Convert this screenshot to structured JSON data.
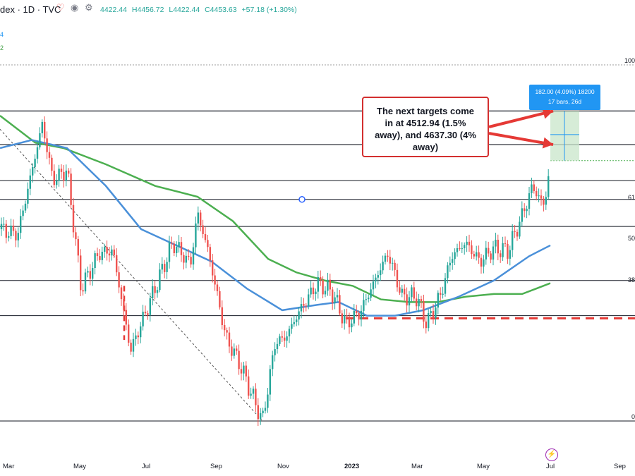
{
  "header": {
    "symbol": "dex · 1D · TVC",
    "open": "4422.44",
    "high": "H4456.72",
    "low": "L4422.44",
    "close": "C4453.63",
    "change": "+57.18 (+1.30%)",
    "left_digits": [
      "4",
      "2"
    ]
  },
  "annotation": {
    "text_lines": [
      "The next targets come",
      "in at 4512.94 (1.5%",
      "away), and 4637.30 (4%",
      "away)"
    ]
  },
  "measure_box": {
    "line1": "182.00 (4.09%) 18200",
    "line2": "17 bars, 26d"
  },
  "fib_labels": [
    "100",
    "61",
    "50",
    "38",
    "0"
  ],
  "chart_data": {
    "type": "candlestick",
    "x_labels": [
      "Mar",
      "May",
      "Jul",
      "Sep",
      "Nov",
      "2023",
      "Mar",
      "May",
      "Jul",
      "Sep"
    ],
    "price_path": [
      [
        0,
        4200
      ],
      [
        25,
        4180
      ],
      [
        60,
        4590
      ],
      [
        75,
        4380
      ],
      [
        95,
        4420
      ],
      [
        115,
        3980
      ],
      [
        140,
        4110
      ],
      [
        160,
        4120
      ],
      [
        185,
        3750
      ],
      [
        215,
        3950
      ],
      [
        245,
        4150
      ],
      [
        270,
        4070
      ],
      [
        280,
        4260
      ],
      [
        295,
        4120
      ],
      [
        320,
        3800
      ],
      [
        340,
        3700
      ],
      [
        355,
        3600
      ],
      [
        372,
        3490
      ],
      [
        390,
        3780
      ],
      [
        405,
        3800
      ],
      [
        425,
        3900
      ],
      [
        450,
        4000
      ],
      [
        470,
        3970
      ],
      [
        490,
        3850
      ],
      [
        510,
        3890
      ],
      [
        540,
        4060
      ],
      [
        550,
        4110
      ],
      [
        570,
        3950
      ],
      [
        590,
        3950
      ],
      [
        605,
        3850
      ],
      [
        625,
        3960
      ],
      [
        640,
        4100
      ],
      [
        660,
        4150
      ],
      [
        680,
        4080
      ],
      [
        700,
        4130
      ],
      [
        720,
        4120
      ],
      [
        740,
        4250
      ],
      [
        755,
        4360
      ],
      [
        765,
        4310
      ],
      [
        772,
        4290
      ],
      [
        780,
        4453
      ]
    ],
    "sma_blue": [
      [
        0,
        4500
      ],
      [
        45,
        4530
      ],
      [
        95,
        4500
      ],
      [
        150,
        4360
      ],
      [
        200,
        4200
      ],
      [
        250,
        4140
      ],
      [
        300,
        4080
      ],
      [
        350,
        3980
      ],
      [
        400,
        3900
      ],
      [
        450,
        3920
      ],
      [
        480,
        3930
      ],
      [
        520,
        3880
      ],
      [
        560,
        3880
      ],
      [
        600,
        3900
      ],
      [
        650,
        3950
      ],
      [
        700,
        4010
      ],
      [
        750,
        4100
      ],
      [
        780,
        4140
      ]
    ],
    "sma_green": [
      [
        0,
        4620
      ],
      [
        50,
        4520
      ],
      [
        90,
        4500
      ],
      [
        150,
        4440
      ],
      [
        220,
        4360
      ],
      [
        280,
        4320
      ],
      [
        330,
        4230
      ],
      [
        380,
        4090
      ],
      [
        420,
        4040
      ],
      [
        460,
        4010
      ],
      [
        500,
        3990
      ],
      [
        540,
        3940
      ],
      [
        580,
        3930
      ],
      [
        620,
        3930
      ],
      [
        660,
        3950
      ],
      [
        700,
        3960
      ],
      [
        740,
        3960
      ],
      [
        780,
        4000
      ]
    ],
    "fib_levels": [
      4808,
      4380,
      4210,
      4010,
      3490
    ],
    "resistance_levels": [
      4637.3,
      4512.94
    ],
    "support_dashed": 3870,
    "measure": {
      "value": 182.0,
      "pct": 4.09,
      "bars": 17,
      "days": 26
    }
  }
}
